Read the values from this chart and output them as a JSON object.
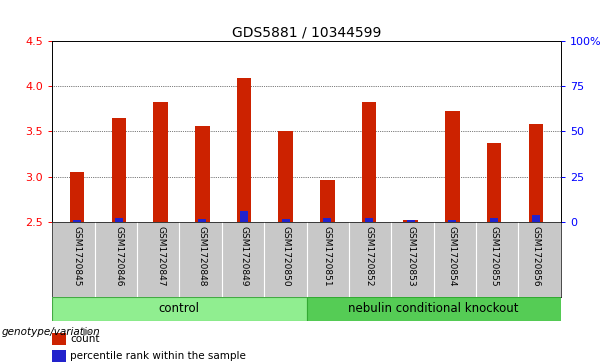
{
  "title": "GDS5881 / 10344599",
  "samples": [
    "GSM1720845",
    "GSM1720846",
    "GSM1720847",
    "GSM1720848",
    "GSM1720849",
    "GSM1720850",
    "GSM1720851",
    "GSM1720852",
    "GSM1720853",
    "GSM1720854",
    "GSM1720855",
    "GSM1720856"
  ],
  "red_values": [
    3.05,
    3.65,
    3.82,
    3.56,
    4.09,
    3.5,
    2.97,
    3.82,
    2.52,
    3.73,
    3.37,
    3.58
  ],
  "blue_values": [
    2.52,
    2.55,
    2.5,
    2.53,
    2.62,
    2.53,
    2.55,
    2.55,
    2.52,
    2.52,
    2.55,
    2.58
  ],
  "ymin": 2.5,
  "ymax": 4.5,
  "yticks_left": [
    2.5,
    3.0,
    3.5,
    4.0,
    4.5
  ],
  "yticks_right": [
    0,
    25,
    50,
    75,
    100
  ],
  "ytick_labels_right": [
    "0",
    "25",
    "50",
    "75",
    "100%"
  ],
  "grid_values": [
    3.0,
    3.5,
    4.0
  ],
  "bar_width": 0.35,
  "red_color": "#CC2200",
  "blue_color": "#2222CC",
  "plot_bg_color": "#ffffff",
  "tick_area_color": "#C8C8C8",
  "control_color": "#90EE90",
  "knockout_color": "#55CC55",
  "legend_count_label": "count",
  "legend_percentile_label": "percentile rank within the sample",
  "genotype_label": "genotype/variation",
  "title_fontsize": 10,
  "tick_fontsize": 8,
  "sample_fontsize": 6.5,
  "group_fontsize": 8.5,
  "legend_fontsize": 7.5
}
